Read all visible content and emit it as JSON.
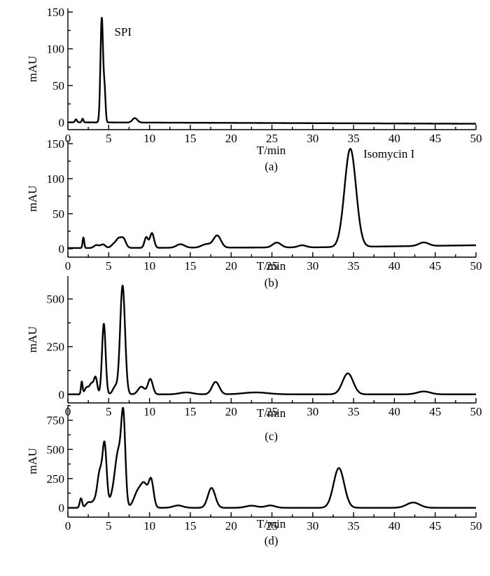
{
  "chart_data": [
    {
      "type": "line",
      "panel_label": "(a)",
      "xlabel": "T/min",
      "ylabel": "mAU",
      "xlim": [
        0,
        50
      ],
      "ylim": [
        -10,
        155
      ],
      "xticks": [
        0,
        5,
        10,
        15,
        20,
        25,
        30,
        35,
        40,
        45,
        50
      ],
      "yticks": [
        0,
        50,
        100,
        150
      ],
      "annotations": [
        {
          "text": "SPI",
          "x": 5.7,
          "y": 118
        }
      ],
      "baseline": [
        [
          0,
          0.0
        ],
        [
          50,
          -2.0
        ]
      ],
      "peaks": [
        {
          "t": 1.0,
          "h": 4,
          "w": 0.12
        },
        {
          "t": 1.8,
          "h": 5,
          "w": 0.1
        },
        {
          "t": 4.15,
          "h": 142,
          "w": 0.16
        },
        {
          "t": 4.5,
          "h": 40,
          "w": 0.12
        },
        {
          "t": 8.2,
          "h": 6,
          "w": 0.3
        }
      ],
      "series": [
        {
          "x": [
            0,
            1.8,
            4.1,
            4.2,
            8.2,
            10,
            20,
            30,
            40,
            50
          ],
          "y": [
            0,
            5,
            125,
            142,
            6,
            0,
            -1,
            -1,
            -2,
            -2
          ]
        }
      ]
    },
    {
      "type": "line",
      "panel_label": "(b)",
      "xlabel": "T/min",
      "ylabel": "mAU",
      "xlim": [
        0,
        50
      ],
      "ylim": [
        -12,
        155
      ],
      "xticks": [
        0,
        5,
        10,
        15,
        20,
        25,
        30,
        35,
        40,
        45,
        50
      ],
      "yticks": [
        0,
        50,
        100,
        150
      ],
      "annotations": [
        {
          "text": "Isomycin I",
          "x": 36.2,
          "y": 130
        }
      ],
      "baseline": [
        [
          0,
          1.0
        ],
        [
          30,
          2.0
        ],
        [
          50,
          5.0
        ]
      ],
      "peaks": [
        {
          "t": 1.9,
          "h": 15,
          "w": 0.1
        },
        {
          "t": 3.5,
          "h": 4,
          "w": 0.3
        },
        {
          "t": 4.3,
          "h": 5,
          "w": 0.3
        },
        {
          "t": 5.6,
          "h": 5,
          "w": 0.3
        },
        {
          "t": 6.2,
          "h": 12,
          "w": 0.3
        },
        {
          "t": 6.8,
          "h": 13,
          "w": 0.3
        },
        {
          "t": 9.6,
          "h": 15,
          "w": 0.22
        },
        {
          "t": 10.3,
          "h": 21,
          "w": 0.25
        },
        {
          "t": 13.8,
          "h": 5,
          "w": 0.5
        },
        {
          "t": 17.0,
          "h": 5,
          "w": 0.6
        },
        {
          "t": 18.3,
          "h": 17,
          "w": 0.45
        },
        {
          "t": 25.6,
          "h": 7,
          "w": 0.5
        },
        {
          "t": 28.7,
          "h": 3,
          "w": 0.5
        },
        {
          "t": 34.6,
          "h": 140,
          "w": 0.7
        },
        {
          "t": 43.6,
          "h": 5,
          "w": 0.6
        }
      ],
      "series": [
        {
          "x": [
            0,
            1.9,
            6.5,
            10.3,
            18.3,
            25.6,
            34.6,
            43.6,
            50
          ],
          "y": [
            1,
            16,
            15,
            23,
            19,
            9,
            142,
            9,
            6
          ]
        }
      ]
    },
    {
      "type": "line",
      "panel_label": "(c)",
      "xlabel": "T/min",
      "ylabel": "mAU",
      "xlim": [
        0,
        50
      ],
      "ylim": [
        -45,
        620
      ],
      "xticks": [
        0,
        5,
        10,
        15,
        20,
        25,
        30,
        35,
        40,
        45,
        50
      ],
      "yticks": [
        0,
        250,
        500
      ],
      "annotations": [],
      "baseline": [
        [
          0,
          0.0
        ],
        [
          50,
          0.0
        ]
      ],
      "peaks": [
        {
          "t": 1.7,
          "h": 65,
          "w": 0.1
        },
        {
          "t": 2.3,
          "h": 35,
          "w": 0.25
        },
        {
          "t": 2.9,
          "h": 55,
          "w": 0.25
        },
        {
          "t": 3.4,
          "h": 85,
          "w": 0.2
        },
        {
          "t": 4.4,
          "h": 370,
          "w": 0.22
        },
        {
          "t": 5.8,
          "h": 40,
          "w": 0.3
        },
        {
          "t": 6.7,
          "h": 570,
          "w": 0.3
        },
        {
          "t": 9.0,
          "h": 40,
          "w": 0.4
        },
        {
          "t": 10.1,
          "h": 80,
          "w": 0.3
        },
        {
          "t": 14.5,
          "h": 10,
          "w": 0.8
        },
        {
          "t": 18.1,
          "h": 65,
          "w": 0.45
        },
        {
          "t": 23.0,
          "h": 10,
          "w": 1.5
        },
        {
          "t": 34.3,
          "h": 110,
          "w": 0.65
        },
        {
          "t": 43.6,
          "h": 15,
          "w": 0.8
        }
      ],
      "series": [
        {
          "x": [
            0,
            1.7,
            4.4,
            6.7,
            10.1,
            18.1,
            34.3,
            43.6,
            50
          ],
          "y": [
            0,
            65,
            372,
            575,
            82,
            66,
            112,
            16,
            0
          ]
        }
      ]
    },
    {
      "type": "line",
      "panel_label": "(d)",
      "xlabel": "T/min",
      "ylabel": "mAU",
      "xlim": [
        0,
        50
      ],
      "ylim": [
        -80,
        880
      ],
      "xticks": [
        0,
        5,
        10,
        15,
        20,
        25,
        30,
        35,
        40,
        45,
        50
      ],
      "yticks": [
        0,
        250,
        500,
        750
      ],
      "annotations": [],
      "baseline": [
        [
          0,
          0.0
        ],
        [
          50,
          0.0
        ]
      ],
      "peaks": [
        {
          "t": 1.6,
          "h": 80,
          "w": 0.15
        },
        {
          "t": 2.5,
          "h": 45,
          "w": 0.3
        },
        {
          "t": 3.2,
          "h": 50,
          "w": 0.3
        },
        {
          "t": 3.9,
          "h": 300,
          "w": 0.3
        },
        {
          "t": 4.5,
          "h": 520,
          "w": 0.25
        },
        {
          "t": 5.5,
          "h": 90,
          "w": 0.4
        },
        {
          "t": 6.2,
          "h": 460,
          "w": 0.4
        },
        {
          "t": 6.8,
          "h": 690,
          "w": 0.25
        },
        {
          "t": 8.6,
          "h": 140,
          "w": 0.5
        },
        {
          "t": 9.4,
          "h": 170,
          "w": 0.4
        },
        {
          "t": 10.2,
          "h": 230,
          "w": 0.3
        },
        {
          "t": 13.5,
          "h": 20,
          "w": 0.6
        },
        {
          "t": 17.6,
          "h": 170,
          "w": 0.45
        },
        {
          "t": 22.5,
          "h": 18,
          "w": 0.7
        },
        {
          "t": 24.8,
          "h": 20,
          "w": 0.6
        },
        {
          "t": 33.2,
          "h": 340,
          "w": 0.65
        },
        {
          "t": 42.3,
          "h": 45,
          "w": 0.8
        }
      ],
      "series": [
        {
          "x": [
            0,
            1.6,
            4.5,
            6.8,
            10.2,
            17.6,
            33.2,
            42.3,
            50
          ],
          "y": [
            0,
            82,
            560,
            810,
            245,
            172,
            342,
            47,
            0
          ]
        }
      ]
    }
  ]
}
